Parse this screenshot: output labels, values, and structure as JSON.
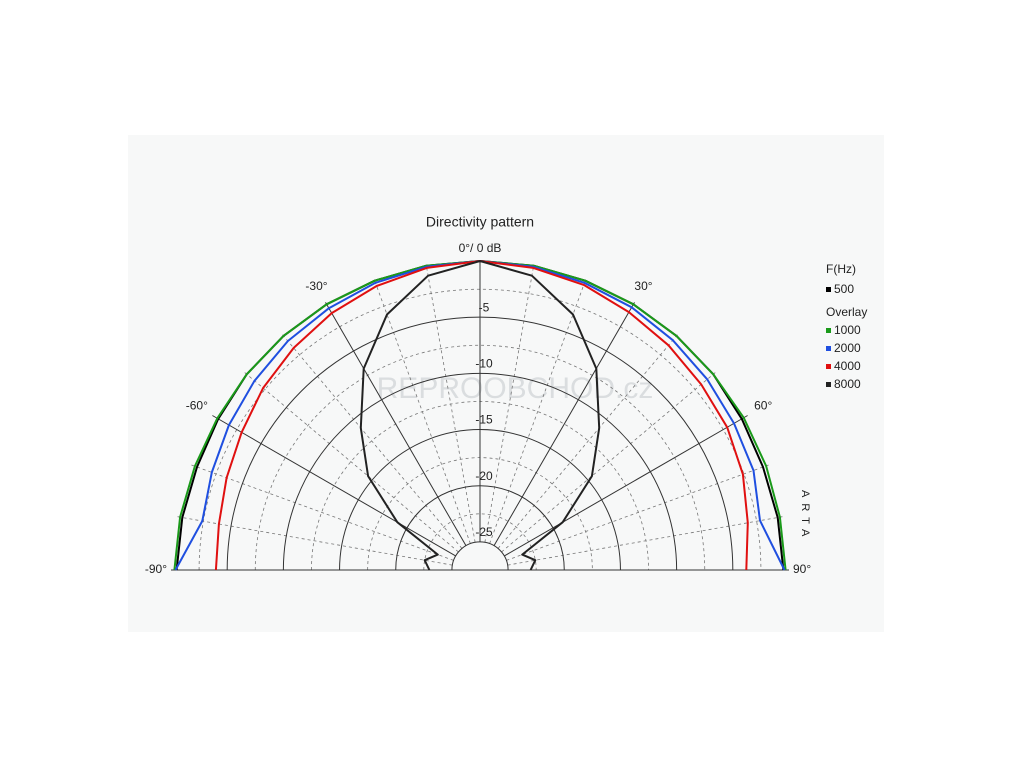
{
  "chart_data": {
    "type": "polar",
    "title": "Directivity pattern",
    "x": [
      -90,
      -80,
      -70,
      -60,
      -50,
      -40,
      -30,
      -20,
      -10,
      0,
      10,
      20,
      30,
      40,
      50,
      60,
      70,
      80,
      90
    ],
    "series": [
      {
        "name": "500",
        "color": "#000000",
        "values": [
          -0.5,
          -0.6,
          -0.7,
          -0.6,
          -0.4,
          -0.3,
          -0.2,
          -0.1,
          0,
          0,
          0,
          -0.1,
          -0.2,
          -0.3,
          -0.4,
          -0.6,
          -0.7,
          -0.6,
          -0.5
        ]
      },
      {
        "name": "1000",
        "color": "#1a9a1a",
        "values": [
          -0.3,
          -0.4,
          -0.5,
          -0.5,
          -0.4,
          -0.3,
          -0.2,
          -0.1,
          0,
          0,
          0,
          -0.1,
          -0.2,
          -0.3,
          -0.4,
          -0.4,
          -0.4,
          -0.4,
          -0.3
        ]
      },
      {
        "name": "2000",
        "color": "#1f4fe0",
        "values": [
          -0.4,
          -2.4,
          -2.1,
          -1.7,
          -1.3,
          -0.9,
          -0.6,
          -0.3,
          -0.1,
          0,
          -0.1,
          -0.3,
          -0.5,
          -0.8,
          -1.1,
          -1.4,
          -1.6,
          -2.2,
          -0.4
        ]
      },
      {
        "name": "4000",
        "color": "#e01010",
        "values": [
          -4.0,
          -3.9,
          -3.5,
          -3.0,
          -2.3,
          -1.7,
          -1.1,
          -0.6,
          -0.2,
          0,
          -0.2,
          -0.5,
          -1.0,
          -1.4,
          -1.8,
          -2.1,
          -2.6,
          -3.3,
          -3.8
        ]
      },
      {
        "name": "8000",
        "color": "#222222",
        "values": [
          -23,
          -22.5,
          -23.5,
          -19,
          -14.5,
          -11,
          -6.8,
          -3.3,
          -0.9,
          0,
          -0.9,
          -3.3,
          -6.8,
          -11,
          -14.5,
          -19,
          -23.5,
          -22.5,
          -23
        ]
      }
    ],
    "rlim": [
      -27.5,
      0
    ],
    "rticks": [
      -25,
      -20,
      -15,
      -10,
      -5
    ],
    "xticks": [
      {
        "value": -90,
        "label": "-90°"
      },
      {
        "value": -60,
        "label": "-60°"
      },
      {
        "value": -30,
        "label": "-30°"
      },
      {
        "value": 0,
        "label": "0°/ 0 dB"
      },
      {
        "value": 30,
        "label": "30°"
      },
      {
        "value": 60,
        "label": "60°"
      },
      {
        "value": 90,
        "label": "90°"
      }
    ],
    "legend_title": "F(Hz)",
    "overlay_label": "Overlay",
    "watermark": "ARTA",
    "site_watermark": "REPROOBCHOD.cz",
    "grid": true
  }
}
